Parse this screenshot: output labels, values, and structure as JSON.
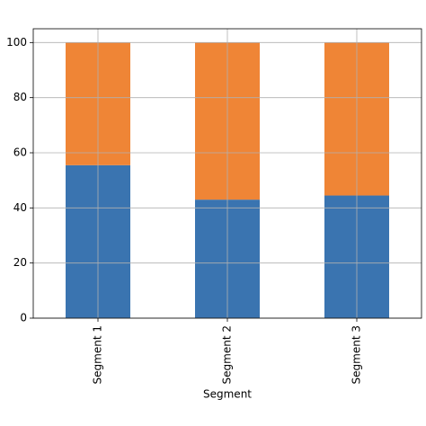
{
  "chart_data": {
    "type": "stacked_bar",
    "x_label": "Segment",
    "categories": [
      "Segment 1",
      "Segment 2",
      "Segment 3"
    ],
    "series": [
      {
        "color": "#3a74b0",
        "values": [
          55.5,
          43,
          44.5
        ]
      },
      {
        "color": "#ef8536",
        "values": [
          44.5,
          57,
          55.5
        ]
      }
    ],
    "ylim": [
      0,
      105
    ],
    "yticks": [
      0,
      20,
      40,
      60,
      80,
      100
    ],
    "grid": true
  }
}
